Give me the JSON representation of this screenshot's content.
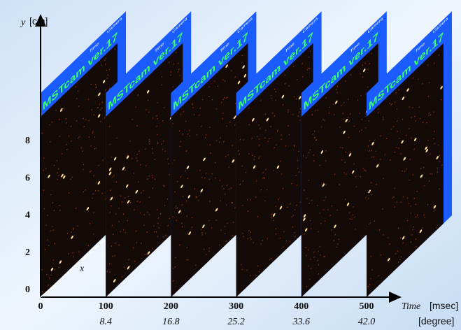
{
  "axes": {
    "y_symbol": "y",
    "y_unit": "[cm]",
    "x_symbol": "x",
    "yticks": [
      0,
      2,
      4,
      6,
      8
    ],
    "xticks": [
      0,
      100,
      200,
      300,
      400,
      500
    ],
    "degree_labels": [
      "8.4",
      "16.8",
      "25.2",
      "33.6",
      "42.0"
    ],
    "time_label": "Time",
    "time_unit": "[msec]",
    "degree_unit": "[degree]"
  },
  "frames": [
    {
      "title": "MSTcam ver.17",
      "time": "Time",
      "camera": "Camera"
    },
    {
      "title": "MSTcam ver.17",
      "time": "Time",
      "camera": "Camera"
    },
    {
      "title": "MSTcam ver.17",
      "time": "Time",
      "camera": "Camera"
    },
    {
      "title": "MSTcam ver.17",
      "time": "Time",
      "camera": "Camera"
    },
    {
      "title": "MSTcam ver.17",
      "time": "Time",
      "camera": "Camera"
    },
    {
      "title": "MSTcam ver.17",
      "time": "Time",
      "camera": "Camera"
    }
  ]
}
